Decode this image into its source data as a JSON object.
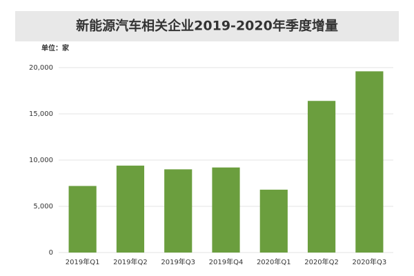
{
  "chart_data": {
    "type": "bar",
    "title": "新能源汽车相关企业2019-2020年季度增量",
    "unit_label": "单位：家",
    "categories": [
      "2019年Q1",
      "2019年Q2",
      "2019年Q3",
      "2019年Q4",
      "2020年Q1",
      "2020年Q2",
      "2020年Q3"
    ],
    "values": [
      7200,
      9400,
      9000,
      9200,
      6800,
      16400,
      19600
    ],
    "color": "#6b9e3e",
    "ylim": [
      0,
      20000
    ],
    "yticks": [
      0,
      {
        "value": 5000,
        "label": "5,000"
      },
      {
        "value": 10000,
        "label": "10,000"
      },
      {
        "value": 15000,
        "label": "15,000"
      },
      {
        "value": 20000,
        "label": "20,000"
      }
    ],
    "grid": true
  }
}
